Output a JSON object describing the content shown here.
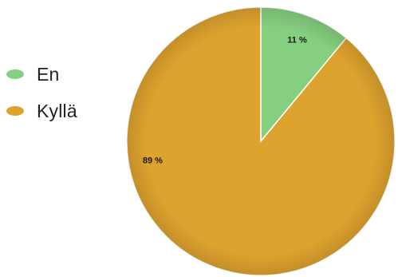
{
  "chart_data": {
    "type": "pie",
    "title": "",
    "categories": [
      "En",
      "Kyllä"
    ],
    "values": [
      11,
      89
    ],
    "labels": [
      "11 %",
      "89 %"
    ],
    "colors": [
      "#86cf80",
      "#dea22e"
    ],
    "start_angle_deg": 0,
    "direction": "clockwise",
    "legend_position": "left"
  },
  "legend": {
    "items": [
      {
        "label": "En",
        "color": "#86cf80"
      },
      {
        "label": "Kyllä",
        "color": "#dea22e"
      }
    ]
  }
}
